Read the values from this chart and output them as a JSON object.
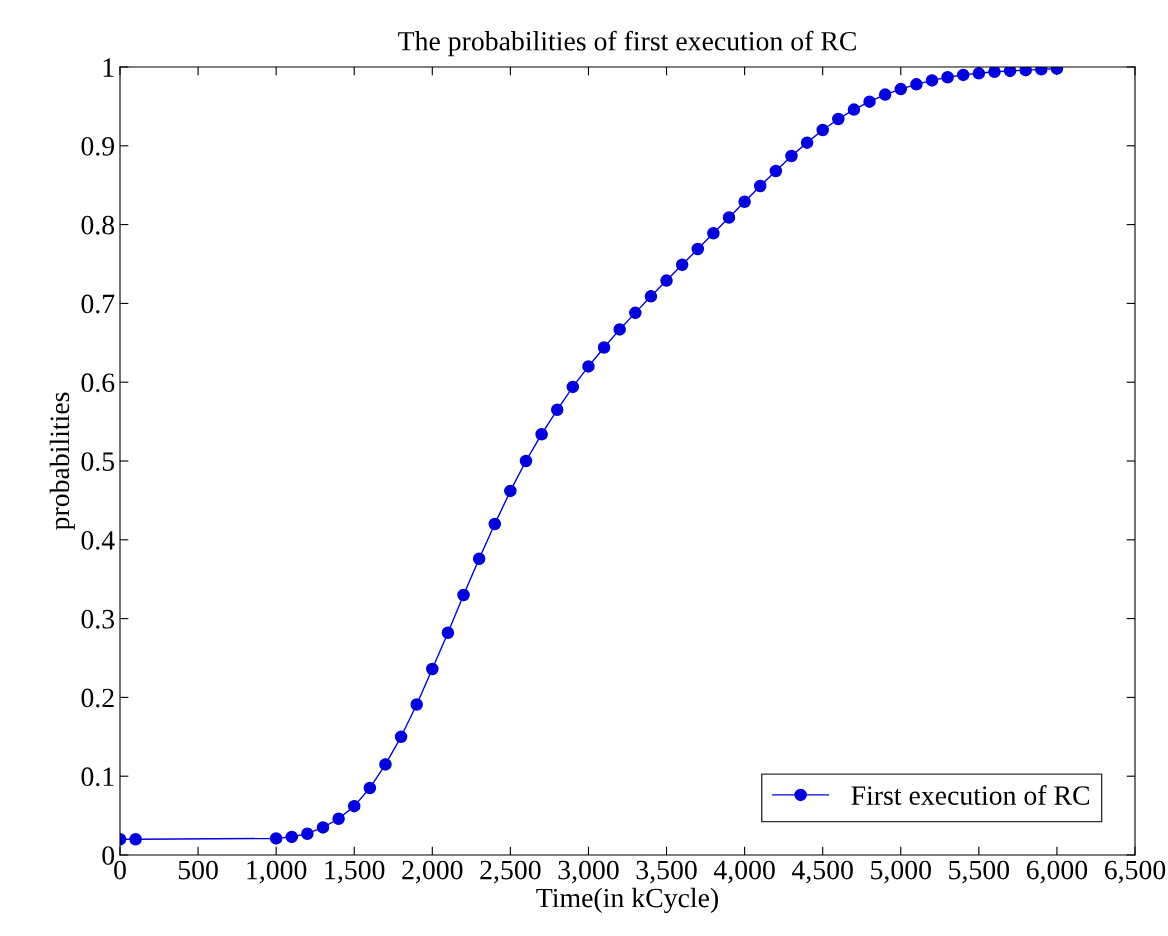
{
  "chart_data": {
    "type": "line",
    "title": "The probabilities of first execution of RC",
    "xlabel": "Time(in kCycle)",
    "ylabel": "probabilities",
    "x": [
      0,
      100,
      1000,
      1100,
      1200,
      1300,
      1400,
      1500,
      1600,
      1700,
      1800,
      1900,
      2000,
      2100,
      2200,
      2300,
      2400,
      2500,
      2600,
      2700,
      2800,
      2900,
      3000,
      3100,
      3200,
      3300,
      3400,
      3500,
      3600,
      3700,
      3800,
      3900,
      4000,
      4100,
      4200,
      4300,
      4400,
      4500,
      4600,
      4700,
      4800,
      4900,
      5000,
      5100,
      5200,
      5300,
      5400,
      5500,
      5600,
      5700,
      5800,
      5900,
      6000
    ],
    "series": [
      {
        "name": "First execution of RC",
        "color": "#0000e0",
        "values": [
          0.02,
          0.02,
          0.021,
          0.023,
          0.027,
          0.035,
          0.046,
          0.062,
          0.085,
          0.115,
          0.15,
          0.191,
          0.236,
          0.282,
          0.33,
          0.376,
          0.42,
          0.462,
          0.5,
          0.534,
          0.565,
          0.594,
          0.62,
          0.644,
          0.667,
          0.688,
          0.709,
          0.729,
          0.749,
          0.769,
          0.789,
          0.809,
          0.829,
          0.849,
          0.868,
          0.887,
          0.904,
          0.92,
          0.934,
          0.946,
          0.956,
          0.965,
          0.972,
          0.978,
          0.983,
          0.987,
          0.99,
          0.992,
          0.994,
          0.995,
          0.996,
          0.997,
          0.998
        ]
      }
    ],
    "xlim": [
      0,
      6500
    ],
    "xticks": [
      0,
      500,
      {
        "value": 1000,
        "label": "1,000"
      },
      {
        "value": 1500,
        "label": "1,500"
      },
      {
        "value": 2000,
        "label": "2,000"
      },
      {
        "value": 2500,
        "label": "2,500"
      },
      {
        "value": 3000,
        "label": "3,000"
      },
      {
        "value": 3500,
        "label": "3,500"
      },
      {
        "value": 4000,
        "label": "4,000"
      },
      {
        "value": 4500,
        "label": "4,500"
      },
      {
        "value": 5000,
        "label": "5,000"
      },
      {
        "value": 5500,
        "label": "5,500"
      },
      {
        "value": 6000,
        "label": "6,000"
      },
      {
        "value": 6500,
        "label": "6,500"
      }
    ],
    "ylim": [
      0,
      1
    ],
    "yticks": [
      0,
      0.1,
      0.2,
      0.3,
      0.4,
      0.5,
      0.6,
      0.7,
      0.8,
      0.9,
      1
    ],
    "grid": false,
    "legend": "bottom right",
    "marker": "circle",
    "line_style": "solid"
  }
}
